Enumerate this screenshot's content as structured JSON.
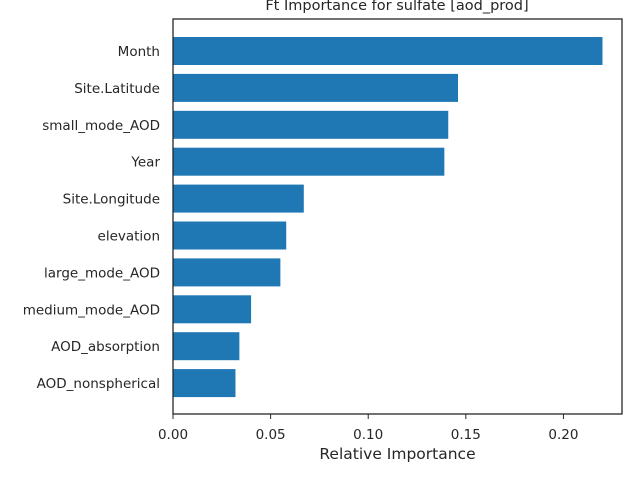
{
  "chart_data": {
    "type": "bar",
    "orientation": "horizontal",
    "title": "Ft Importance for sulfate [aod_prod]",
    "xlabel": "Relative Importance",
    "ylabel": "",
    "categories": [
      "Month",
      "Site.Latitude",
      "small_mode_AOD",
      "Year",
      "Site.Longitude",
      "elevation",
      "large_mode_AOD",
      "medium_mode_AOD",
      "AOD_absorption",
      "AOD_nonspherical"
    ],
    "values": [
      0.22,
      0.146,
      0.141,
      0.139,
      0.067,
      0.058,
      0.055,
      0.04,
      0.034,
      0.032
    ],
    "xlim": [
      0.0,
      0.23
    ],
    "xticks": [
      0.0,
      0.05,
      0.1,
      0.15,
      0.2
    ],
    "xtick_labels": [
      "0.00",
      "0.05",
      "0.10",
      "0.15",
      "0.20"
    ],
    "bar_color": "#1f77b4",
    "grid": false,
    "legend": "none"
  }
}
